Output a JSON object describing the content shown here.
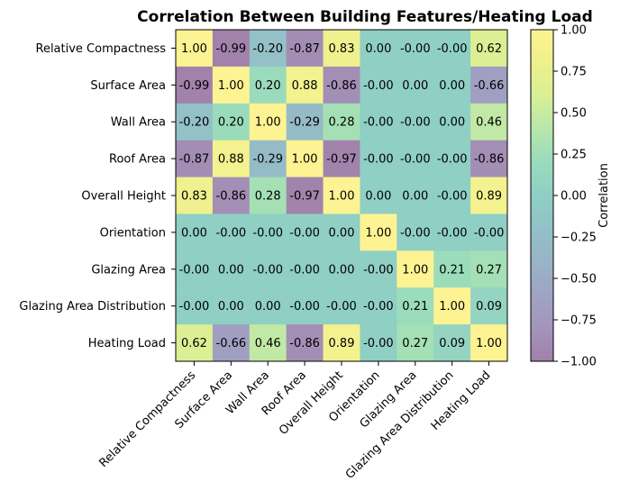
{
  "chart_data": {
    "type": "heatmap",
    "title": "Correlation Between Building Features/Heating Load",
    "x_categories": [
      "Relative Compactness",
      "Surface Area",
      "Wall Area",
      "Roof Area",
      "Overall Height",
      "Orientation",
      "Glazing Area",
      "Glazing Area Distribution",
      "Heating Load"
    ],
    "y_categories": [
      "Relative Compactness",
      "Surface Area",
      "Wall Area",
      "Roof Area",
      "Overall Height",
      "Orientation",
      "Glazing Area",
      "Glazing Area Distribution",
      "Heating Load"
    ],
    "values": [
      [
        1.0,
        -0.99,
        -0.2,
        -0.87,
        0.83,
        0.0,
        -0.0,
        -0.0,
        0.62
      ],
      [
        -0.99,
        1.0,
        0.2,
        0.88,
        -0.86,
        -0.0,
        0.0,
        0.0,
        -0.66
      ],
      [
        -0.2,
        0.2,
        1.0,
        -0.29,
        0.28,
        -0.0,
        -0.0,
        0.0,
        0.46
      ],
      [
        -0.87,
        0.88,
        -0.29,
        1.0,
        -0.97,
        -0.0,
        -0.0,
        -0.0,
        -0.86
      ],
      [
        0.83,
        -0.86,
        0.28,
        -0.97,
        1.0,
        0.0,
        0.0,
        -0.0,
        0.89
      ],
      [
        0.0,
        -0.0,
        -0.0,
        -0.0,
        0.0,
        1.0,
        -0.0,
        -0.0,
        -0.0
      ],
      [
        -0.0,
        0.0,
        -0.0,
        -0.0,
        0.0,
        -0.0,
        1.0,
        0.21,
        0.27
      ],
      [
        -0.0,
        0.0,
        0.0,
        -0.0,
        -0.0,
        -0.0,
        0.21,
        1.0,
        0.09
      ],
      [
        0.62,
        -0.66,
        0.46,
        -0.86,
        0.89,
        -0.0,
        0.27,
        0.09,
        1.0
      ]
    ],
    "cell_labels": [
      [
        "1.00",
        "-0.99",
        "-0.20",
        "-0.87",
        "0.83",
        "0.00",
        "-0.00",
        "-0.00",
        "0.62"
      ],
      [
        "-0.99",
        "1.00",
        "0.20",
        "0.88",
        "-0.86",
        "-0.00",
        "0.00",
        "0.00",
        "-0.66"
      ],
      [
        "-0.20",
        "0.20",
        "1.00",
        "-0.29",
        "0.28",
        "-0.00",
        "-0.00",
        "0.00",
        "0.46"
      ],
      [
        "-0.87",
        "0.88",
        "-0.29",
        "1.00",
        "-0.97",
        "-0.00",
        "-0.00",
        "-0.00",
        "-0.86"
      ],
      [
        "0.83",
        "-0.86",
        "0.28",
        "-0.97",
        "1.00",
        "0.00",
        "0.00",
        "-0.00",
        "0.89"
      ],
      [
        "0.00",
        "-0.00",
        "-0.00",
        "-0.00",
        "0.00",
        "1.00",
        "-0.00",
        "-0.00",
        "-0.00"
      ],
      [
        "-0.00",
        "0.00",
        "-0.00",
        "-0.00",
        "0.00",
        "-0.00",
        "1.00",
        "0.21",
        "0.27"
      ],
      [
        "-0.00",
        "0.00",
        "0.00",
        "-0.00",
        "-0.00",
        "-0.00",
        "0.21",
        "1.00",
        "0.09"
      ],
      [
        "0.62",
        "-0.66",
        "0.46",
        "-0.86",
        "0.89",
        "-0.00",
        "0.27",
        "0.09",
        "1.00"
      ]
    ],
    "colorbar": {
      "label": "Correlation",
      "range": [
        -1.0,
        1.0
      ],
      "ticks": [
        1.0,
        0.75,
        0.5,
        0.25,
        0.0,
        -0.25,
        -0.5,
        -0.75,
        -1.0
      ],
      "tick_labels": [
        "1.00",
        "0.75",
        "0.50",
        "0.25",
        "0.00",
        "−0.25",
        "−0.50",
        "−0.75",
        "−1.00"
      ],
      "colormap": "viridis",
      "alpha": 0.5
    }
  }
}
